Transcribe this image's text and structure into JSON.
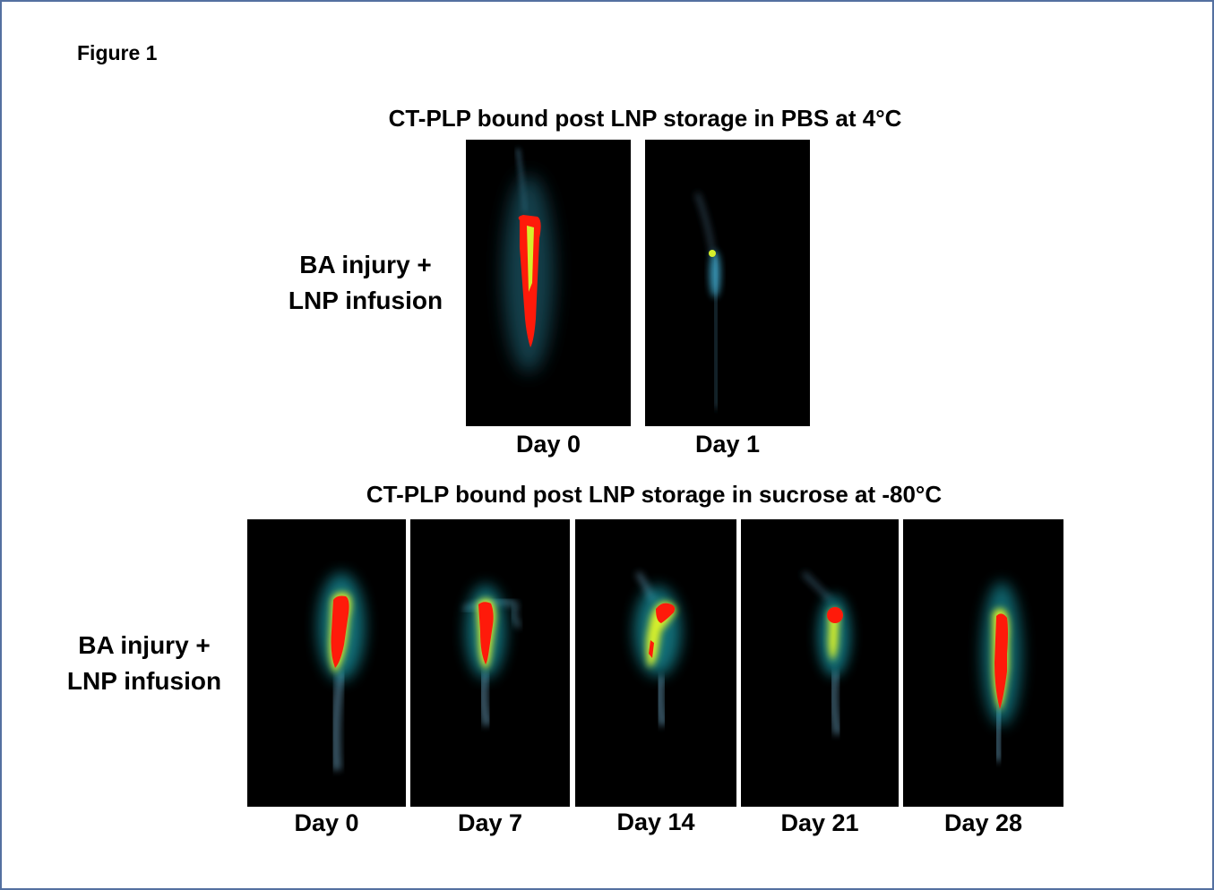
{
  "figure": {
    "label": "Figure 1"
  },
  "top_section": {
    "title": "CT-PLP bound post LNP storage in PBS at 4°C",
    "row_label_line1": "BA injury +",
    "row_label_line2": "LNP infusion",
    "panels": [
      {
        "day": "Day 0",
        "signal": "high"
      },
      {
        "day": "Day 1",
        "signal": "low"
      }
    ]
  },
  "bottom_section": {
    "title": "CT-PLP bound post LNP storage in sucrose at -80°C",
    "row_label_line1": "BA injury +",
    "row_label_line2": "LNP infusion",
    "panels": [
      {
        "day": "Day 0",
        "signal": "high"
      },
      {
        "day": "Day 7",
        "signal": "high"
      },
      {
        "day": "Day 14",
        "signal": "high"
      },
      {
        "day": "Day 21",
        "signal": "moderate"
      },
      {
        "day": "Day 28",
        "signal": "high"
      }
    ]
  },
  "colors": {
    "background": "#000000",
    "frame": "#5470a0",
    "heat_high": "#ff1a0a",
    "heat_mid": "#d6ef2a",
    "heat_low": "#1fb8c8",
    "vessel": "#7aa6c0"
  }
}
